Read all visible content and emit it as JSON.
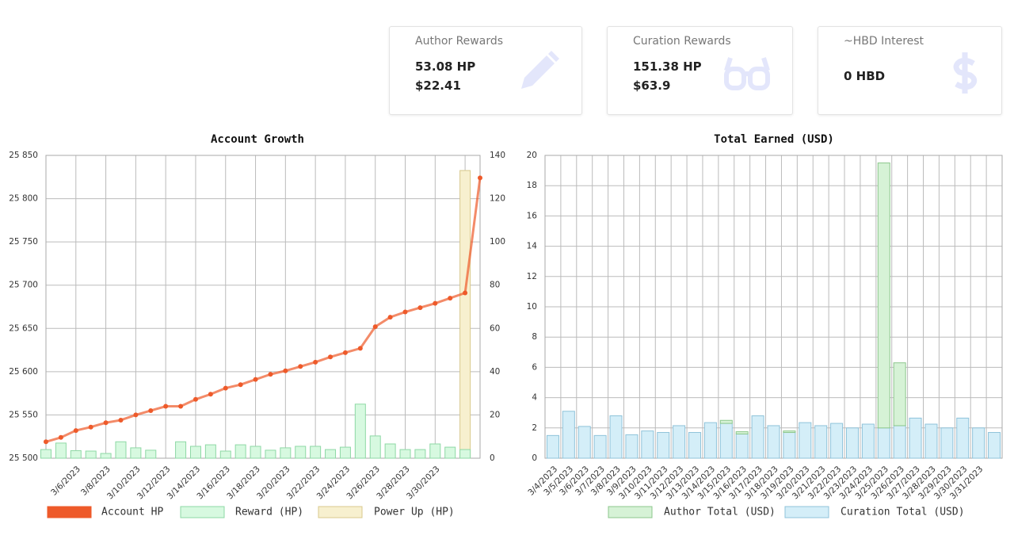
{
  "cards": [
    {
      "label": "Author Rewards",
      "lines": [
        "53.08 HP",
        "$22.41"
      ]
    },
    {
      "label": "Curation Rewards",
      "lines": [
        "151.38 HP",
        "$63.9"
      ]
    },
    {
      "label": "~HBD Interest",
      "lines": [
        "0 HBD"
      ]
    }
  ],
  "chart_data": [
    {
      "type": "combo",
      "title": "Account Growth",
      "categories": [
        null,
        null,
        "3/6/2023",
        null,
        "3/8/2023",
        null,
        "3/10/2023",
        null,
        "3/12/2023",
        null,
        "3/14/2023",
        null,
        "3/16/2023",
        null,
        "3/18/2023",
        null,
        "3/20/2023",
        null,
        "3/22/2023",
        null,
        "3/24/2023",
        null,
        "3/26/2023",
        null,
        "3/28/2023",
        null,
        "3/30/2023",
        null,
        null,
        null
      ],
      "ylim": [
        25500,
        25850
      ],
      "yticks": [
        {
          "value": 25500,
          "label": "25 500"
        },
        {
          "value": 25550,
          "label": "25 550"
        },
        {
          "value": 25600,
          "label": "25 600"
        },
        {
          "value": 25650,
          "label": "25 650"
        },
        {
          "value": 25700,
          "label": "25 700"
        },
        {
          "value": 25750,
          "label": "25 750"
        },
        {
          "value": 25800,
          "label": "25 800"
        },
        {
          "value": 25850,
          "label": "25 850"
        }
      ],
      "y2lim": [
        0,
        140
      ],
      "y2ticks": [
        0,
        20,
        40,
        60,
        80,
        100,
        120,
        140
      ],
      "grid": true,
      "series": [
        {
          "name": "Power Up (HP)",
          "type": "bar",
          "axis": "y2",
          "color": "#f7f0cf",
          "border": "#d8c98c",
          "values": [
            null,
            null,
            null,
            null,
            null,
            null,
            null,
            null,
            null,
            null,
            null,
            null,
            null,
            null,
            null,
            null,
            null,
            null,
            null,
            null,
            null,
            null,
            null,
            null,
            null,
            null,
            null,
            null,
            133,
            null
          ]
        },
        {
          "name": "Reward (HP)",
          "type": "bar",
          "axis": "y2",
          "color": "#d7f9e0",
          "border": "#8ed8a5",
          "values": [
            4,
            7,
            3.5,
            3.3,
            2.2,
            7.6,
            4.8,
            3.7,
            0,
            7.6,
            5.5,
            6.2,
            3.3,
            6.2,
            5.5,
            3.7,
            4.8,
            5.5,
            5.5,
            4,
            5.1,
            25,
            10.3,
            6.6,
            4,
            4,
            6.6,
            5.1,
            4,
            null
          ]
        },
        {
          "name": "Account HP",
          "type": "line",
          "axis": "y",
          "color": "#ee5a2a",
          "values": [
            25519,
            25524,
            25532,
            25536,
            25541,
            25544,
            25550,
            25555,
            25560,
            25560,
            25568,
            25574,
            25581,
            25585,
            25591,
            25597,
            25601,
            25606,
            25611,
            25617,
            25622,
            25627,
            25652,
            25663,
            25669,
            25674,
            25679,
            25685,
            25691,
            25824
          ]
        }
      ]
    },
    {
      "type": "bar",
      "title": "Total Earned (USD)",
      "stacked": true,
      "categories": [
        "3/4/2023",
        "3/5/2023",
        "3/6/2023",
        "3/7/2023",
        "3/8/2023",
        "3/9/2023",
        "3/10/2023",
        "3/11/2023",
        "3/12/2023",
        "3/13/2023",
        "3/14/2023",
        "3/15/2023",
        "3/16/2023",
        "3/17/2023",
        "3/18/2023",
        "3/19/2023",
        "3/20/2023",
        "3/21/2023",
        "3/22/2023",
        "3/23/2023",
        "3/24/2023",
        "3/25/2023",
        "3/26/2023",
        "3/27/2023",
        "3/28/2023",
        "3/29/2023",
        "3/30/2023",
        "3/31/2023",
        null
      ],
      "ylim": [
        0,
        20
      ],
      "yticks": [
        0,
        2,
        4,
        6,
        8,
        10,
        12,
        14,
        16,
        18,
        20
      ],
      "grid": true,
      "series": [
        {
          "name": "Curation Total (USD)",
          "color": "#d4eef8",
          "border": "#8fc3da",
          "values": [
            1.5,
            3.1,
            2.1,
            1.5,
            2.8,
            1.55,
            1.8,
            1.7,
            2.15,
            1.7,
            2.35,
            2.3,
            1.6,
            2.8,
            2.15,
            1.7,
            2.35,
            2.15,
            2.3,
            2.0,
            2.25,
            2.0,
            2.15,
            2.65,
            2.25,
            2.0,
            2.65,
            2.0,
            1.7
          ]
        },
        {
          "name": "Author Total (USD)",
          "color": "#d6f2d6",
          "border": "#8cc78c",
          "values": [
            0,
            0,
            0,
            0,
            0,
            0,
            0,
            0,
            0,
            0,
            0,
            0.2,
            0.15,
            0,
            0,
            0.1,
            0,
            0,
            0,
            0,
            0,
            17.5,
            4.15,
            0,
            0,
            0,
            0,
            0,
            0
          ]
        }
      ]
    }
  ]
}
